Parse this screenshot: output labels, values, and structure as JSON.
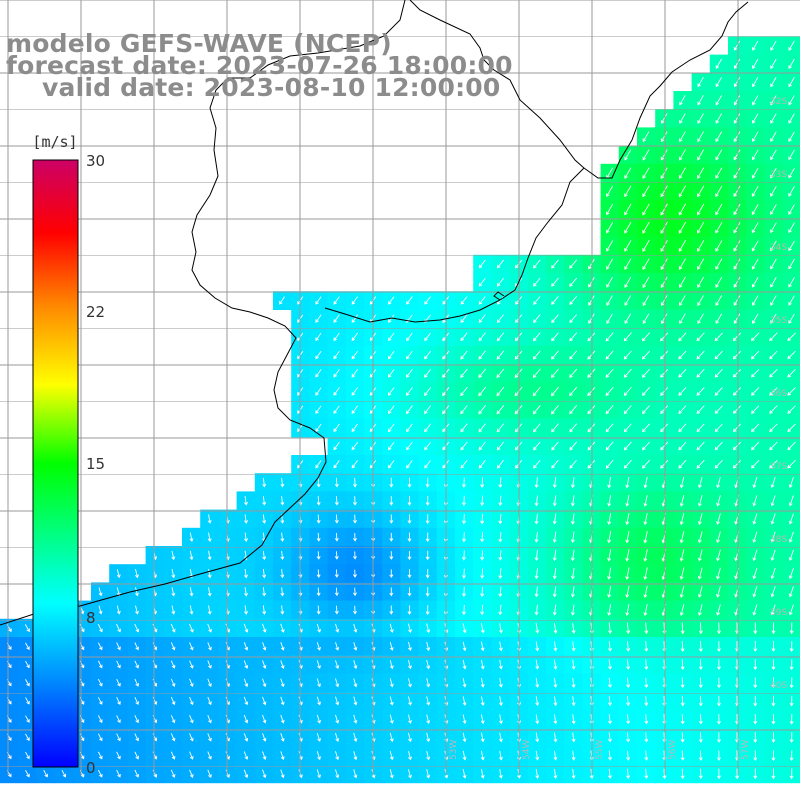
{
  "header": {
    "model": "modelo GEFS-WAVE (NCEP)",
    "forecast": "forecast date: 2023-07-26 18:00:00",
    "valid": "valid date: 2023-08-10 12:00:00"
  },
  "colorbar": {
    "unit": "[m/s]",
    "ticks": [
      "30",
      "22",
      "15",
      "8",
      "0"
    ],
    "tick_values": [
      30,
      22,
      15,
      8,
      0
    ],
    "range": [
      0,
      30
    ],
    "colors": [
      "#0000ff",
      "#0088ff",
      "#00ffff",
      "#00ff00",
      "#ffff00",
      "#ff8800",
      "#ff0000",
      "#cc0066"
    ]
  },
  "map": {
    "variable": "wind speed and direction",
    "lat_labels": [
      "32S",
      "33S",
      "34S",
      "35S",
      "36S",
      "37S",
      "38S",
      "39S",
      "40S"
    ],
    "lon_labels": [
      "53W",
      "54W",
      "55W",
      "56W",
      "57W"
    ],
    "land_color": "#ffffff",
    "grid_color": "#9a9a9a",
    "coast_color": "#000000"
  }
}
